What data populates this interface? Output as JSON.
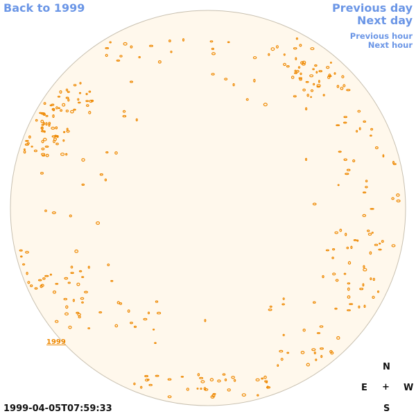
{
  "nav": {
    "back_label": "Back to 1999",
    "previous_day_label": "Previous day",
    "next_day_label": "Next day",
    "previous_hour_label": "Previous hour",
    "next_hour_label": "Next hour"
  },
  "disk": {
    "year_label": "1999",
    "fill_color": "#fff8ec",
    "border_color": "#c8c0b0",
    "feature_color": "#ee8800"
  },
  "timestamp": "1999-04-05T07:59:33",
  "compass": {
    "north": "N",
    "east": "E",
    "center": "+",
    "west": "W",
    "south": "S"
  }
}
